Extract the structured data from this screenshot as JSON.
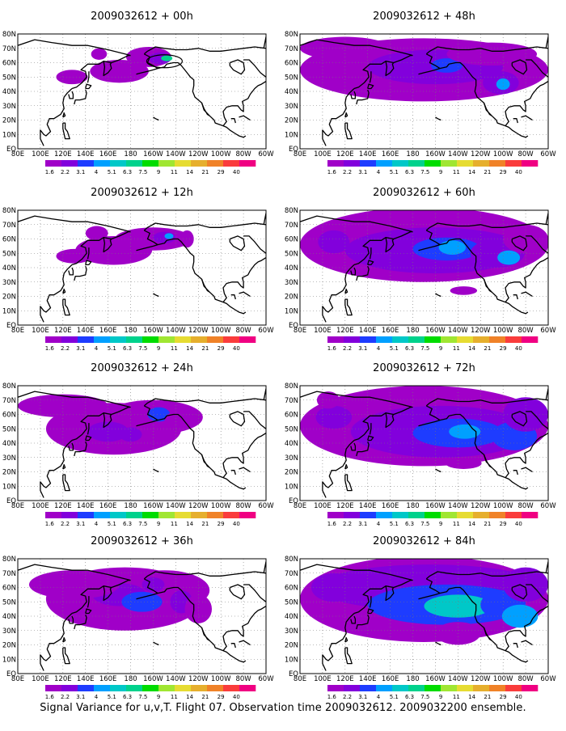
{
  "figure": {
    "caption": "Signal Variance for u,v,T. Flight 07. Observation time 2009032612. 2009032200 ensemble."
  },
  "chart_data": {
    "type": "heatmap",
    "layout": {
      "columns": 2,
      "rows": 4,
      "order": "column-major"
    },
    "panels": [
      {
        "title": "2009032612 + 00h",
        "lead_hours": 0
      },
      {
        "title": "2009032612 + 12h",
        "lead_hours": 12
      },
      {
        "title": "2009032612 + 24h",
        "lead_hours": 24
      },
      {
        "title": "2009032612 + 36h",
        "lead_hours": 36
      },
      {
        "title": "2009032612 + 48h",
        "lead_hours": 48
      },
      {
        "title": "2009032612 + 60h",
        "lead_hours": 60
      },
      {
        "title": "2009032612 + 72h",
        "lead_hours": 72
      },
      {
        "title": "2009032612 + 84h",
        "lead_hours": 84
      }
    ],
    "x_axis": {
      "ticks": [
        "80E",
        "100E",
        "120E",
        "140E",
        "160E",
        "180",
        "160W",
        "140W",
        "120W",
        "100W",
        "80W",
        "60W"
      ],
      "range_deg_east": [
        80,
        300
      ]
    },
    "y_axis": {
      "ticks": [
        "EQ",
        "10N",
        "20N",
        "30N",
        "40N",
        "50N",
        "60N",
        "70N",
        "80N"
      ],
      "range_deg_north": [
        0,
        80
      ]
    },
    "grid": true,
    "colorbar": {
      "levels": [
        "1.6",
        "2.2",
        "3.1",
        "4",
        "5.1",
        "6.3",
        "7.5",
        "9",
        "11",
        "14",
        "21",
        "29",
        "40"
      ],
      "colors": [
        "#a000c8",
        "#8200dc",
        "#1e3cff",
        "#00a0ff",
        "#00c8c8",
        "#00d28c",
        "#00dc00",
        "#a0e632",
        "#e6dc32",
        "#e6af2d",
        "#f08228",
        "#fa3c3c",
        "#f00082"
      ]
    }
  }
}
